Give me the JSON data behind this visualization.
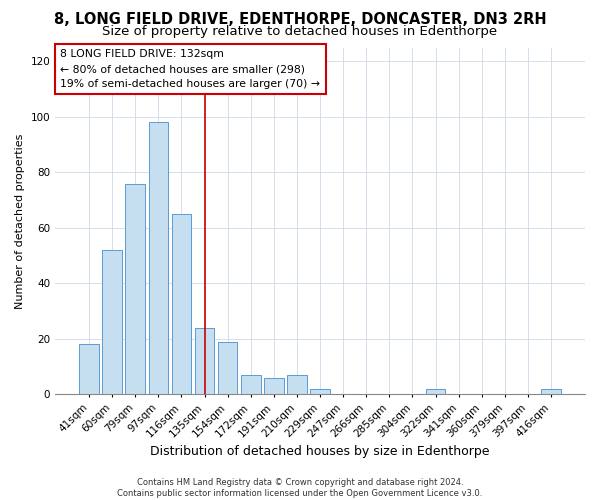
{
  "title": "8, LONG FIELD DRIVE, EDENTHORPE, DONCASTER, DN3 2RH",
  "subtitle": "Size of property relative to detached houses in Edenthorpe",
  "xlabel": "Distribution of detached houses by size in Edenthorpe",
  "ylabel": "Number of detached properties",
  "bar_labels": [
    "41sqm",
    "60sqm",
    "79sqm",
    "97sqm",
    "116sqm",
    "135sqm",
    "154sqm",
    "172sqm",
    "191sqm",
    "210sqm",
    "229sqm",
    "247sqm",
    "266sqm",
    "285sqm",
    "304sqm",
    "322sqm",
    "341sqm",
    "360sqm",
    "379sqm",
    "397sqm",
    "416sqm"
  ],
  "bar_values": [
    18,
    52,
    76,
    98,
    65,
    24,
    19,
    7,
    6,
    7,
    2,
    0,
    0,
    0,
    0,
    2,
    0,
    0,
    0,
    0,
    2
  ],
  "bar_color": "#c5dff0",
  "bar_edge_color": "#5b9bd5",
  "vline_color": "#cc0000",
  "annotation_title": "8 LONG FIELD DRIVE: 132sqm",
  "annotation_line1": "← 80% of detached houses are smaller (298)",
  "annotation_line2": "19% of semi-detached houses are larger (70) →",
  "footer1": "Contains HM Land Registry data © Crown copyright and database right 2024.",
  "footer2": "Contains public sector information licensed under the Open Government Licence v3.0.",
  "ylim": [
    0,
    125
  ],
  "yticks": [
    0,
    20,
    40,
    60,
    80,
    100,
    120
  ],
  "title_fontsize": 10.5,
  "subtitle_fontsize": 9.5,
  "xlabel_fontsize": 9,
  "ylabel_fontsize": 8,
  "tick_fontsize": 7.5,
  "footer_fontsize": 6,
  "vline_index": 5
}
